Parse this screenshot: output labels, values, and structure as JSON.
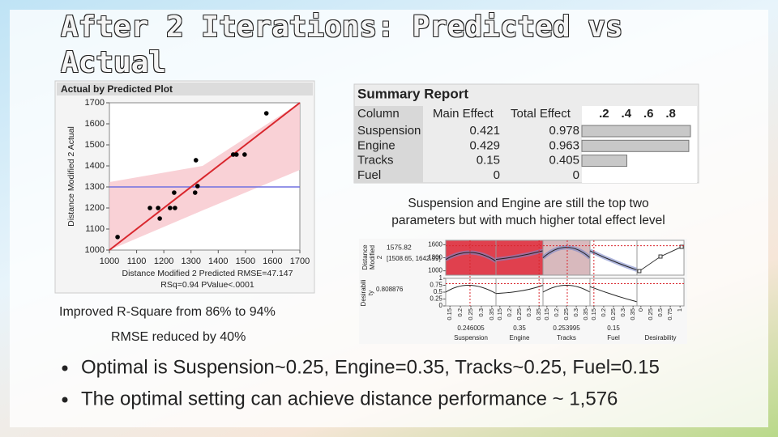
{
  "title": "After 2 Iterations: Predicted vs Actual",
  "chart_data": [
    {
      "type": "scatter",
      "title": "Actual by Predicted Plot",
      "ylabel": "Distance Modified 2 Actual",
      "xlabel": "Distance Modified 2 Predicted RMSE=47.147",
      "subtitle": "RSq=0.94 PValue<.0001",
      "x": [
        1030,
        1149,
        1179,
        1185,
        1223,
        1241,
        1238,
        1315,
        1318,
        1324,
        1455,
        1467,
        1497,
        1577
      ],
      "values": [
        1062,
        1200,
        1200,
        1150,
        1200,
        1200,
        1273,
        1273,
        1427,
        1304,
        1454,
        1454,
        1454,
        1650
      ],
      "color": "#000000",
      "xlim": [
        1000,
        1700
      ],
      "ylim": [
        1000,
        1700
      ],
      "xticks": [
        1000,
        1100,
        1200,
        1300,
        1400,
        1500,
        1600,
        1700
      ],
      "yticks": [
        1000,
        1100,
        1200,
        1300,
        1400,
        1500,
        1600,
        1700
      ],
      "fit_line": {
        "x": [
          1000,
          1700
        ],
        "y": [
          1000,
          1700
        ],
        "color": "#d9272e"
      },
      "mean_line": {
        "value": 1300,
        "color": "#7070e0"
      }
    },
    {
      "type": "bar",
      "title": "Summary Report",
      "columns": [
        "Column",
        "Main Effect",
        "Total Effect"
      ],
      "categories": [
        "Suspension",
        "Engine",
        "Tracks",
        "Fuel"
      ],
      "main_effect": [
        0.421,
        0.429,
        0.15,
        0
      ],
      "values": [
        0.978,
        0.963,
        0.405,
        0
      ],
      "color": "#c8c8c8",
      "xlim": [
        0,
        1
      ],
      "xticks": [
        {
          "value": 0.2,
          "label": ".2"
        },
        {
          "value": 0.4,
          "label": ".4"
        },
        {
          "value": 0.6,
          "label": ".6"
        },
        {
          "value": 0.8,
          "label": ".8"
        }
      ]
    }
  ],
  "caption": [
    "Suspension and Engine are still the top two",
    "parameters but with much higher total effect level"
  ],
  "profiler": {
    "ylabel_top": [
      "Distance",
      "Modified",
      "2"
    ],
    "prediction": 1575.82,
    "interval": "[1508.65, 1642.99]",
    "ylabel_bottom": [
      "Desirabili",
      "ty"
    ],
    "desirability": 0.808876,
    "yticks_top": [
      1600,
      1300,
      1000
    ],
    "ylim_top": [
      900,
      1700
    ],
    "yticks_bottom": [
      1,
      0.75,
      0.5,
      0.25,
      0
    ],
    "ylim_bottom": [
      0,
      1
    ],
    "factors": [
      {
        "name": "Suspension",
        "current": 0.246005,
        "xticks": [
          0.15,
          0.2,
          0.25,
          0.3,
          0.35
        ],
        "xlim": [
          0.13,
          0.37
        ]
      },
      {
        "name": "Engine",
        "current": 0.35,
        "xticks": [
          0.15,
          0.2,
          0.25,
          0.3,
          0.35
        ],
        "xlim": [
          0.13,
          0.37
        ]
      },
      {
        "name": "Tracks",
        "current": 0.253995,
        "xticks": [
          0.15,
          0.2,
          0.25,
          0.3,
          0.35
        ],
        "xlim": [
          0.13,
          0.37
        ]
      },
      {
        "name": "Fuel",
        "current": 0.15,
        "xticks": [
          0.15,
          0.2,
          0.25,
          0.3,
          0.35
        ],
        "xlim": [
          0.13,
          0.37
        ]
      },
      {
        "name": "Desirability",
        "xticks": [
          0,
          0.25,
          0.5,
          0.75,
          1
        ],
        "xlim": [
          -0.1,
          1.1
        ]
      }
    ]
  },
  "notes": [
    "Improved R-Square from 86% to 94%",
    "RMSE reduced by 40%"
  ],
  "bullets": [
    "Optimal is Suspension~0.25, Engine=0.35, Tracks~0.25, Fuel=0.15",
    "The optimal setting can achieve distance performance ~ 1,576"
  ]
}
